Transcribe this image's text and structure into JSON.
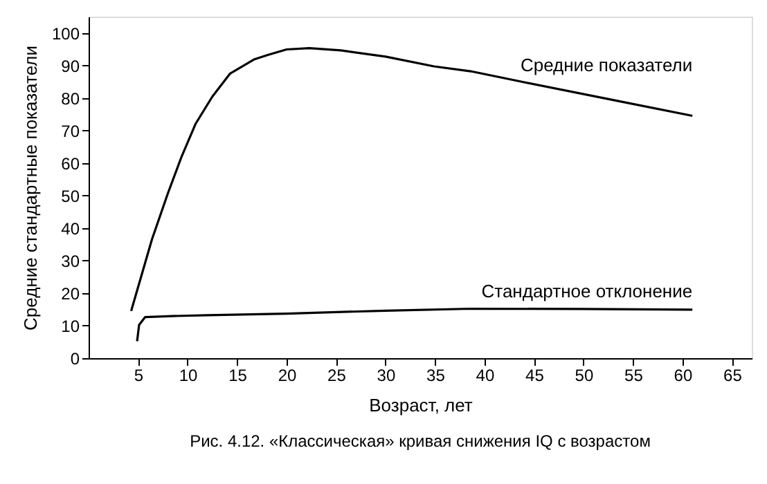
{
  "chart_data": {
    "type": "line",
    "xlabel": "Возраст, лет",
    "ylabel": "Средние стандартные показатели",
    "xlim": [
      0,
      67
    ],
    "xticks": [
      5,
      10,
      15,
      20,
      25,
      30,
      35,
      40,
      45,
      50,
      55,
      60,
      65
    ],
    "ylim": [
      0,
      105
    ],
    "yticks": [
      0,
      10,
      20,
      30,
      40,
      50,
      60,
      70,
      80,
      90,
      100
    ],
    "grid": false,
    "legend": false,
    "marker": "none",
    "line_style": "solid",
    "annotations": [
      "Рис. 4.12. «Классическая» кривая снижения IQ с возрастом"
    ],
    "series": [
      {
        "name": "Средние показатели",
        "color": "#000000",
        "x": [
          4.3,
          6.4,
          8.0,
          9.4,
          10.8,
          12.5,
          14.3,
          16.7,
          18.1,
          20,
          22.3,
          25.5,
          30,
          34.9,
          38.6,
          44.2,
          53.6,
          61
        ],
        "values": [
          14.5,
          36.5,
          50.6,
          62,
          72,
          80.4,
          87.5,
          91.8,
          93.2,
          94.9,
          95.3,
          94.6,
          92.7,
          89.7,
          88.2,
          84.7,
          79,
          74.5
        ]
      },
      {
        "name": "Стандартное отклонение",
        "color": "#000000",
        "x": [
          4.9,
          5.1,
          5.7,
          8,
          12,
          20,
          30,
          38.6,
          50,
          61
        ],
        "values": [
          5.2,
          10.2,
          12.6,
          12.9,
          13.2,
          13.7,
          14.6,
          15.2,
          15.1,
          14.9
        ]
      }
    ]
  }
}
